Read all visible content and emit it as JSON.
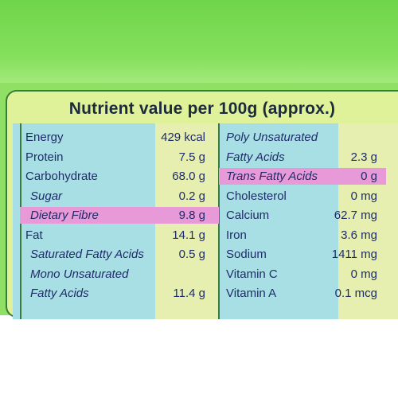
{
  "title": "Nutrient value per 100g (approx.)",
  "colors": {
    "band_green": "#8fe064",
    "panel_yellow": "#dff29a",
    "table_blue": "#a8dfe4",
    "value_column": "#e6efb0",
    "highlight_pink": "#e89ad8",
    "text": "#1f2c6a"
  },
  "left": [
    {
      "name": "Energy",
      "value": "429 kcal"
    },
    {
      "name": "Protein",
      "value": "7.5 g"
    },
    {
      "name": "Carbohydrate",
      "value": "68.0 g"
    },
    {
      "name": "Sugar",
      "value": "0.2 g",
      "italic": true
    },
    {
      "name": "Dietary Fibre",
      "value": "9.8 g",
      "italic": true,
      "highlight": true
    },
    {
      "name": "Fat",
      "value": "14.1 g"
    },
    {
      "name": "Saturated Fatty Acids",
      "value": "0.5 g",
      "italic": true
    },
    {
      "name": "Mono Unsaturated",
      "value": "",
      "italic": true
    },
    {
      "name": "Fatty Acids",
      "value": "11.4 g",
      "italic": true
    }
  ],
  "right": [
    {
      "name": "Poly Unsaturated",
      "value": "",
      "italic": true
    },
    {
      "name": "Fatty Acids",
      "value": "2.3 g",
      "italic": true
    },
    {
      "name": "Trans Fatty Acids",
      "value": "0 g",
      "italic": true,
      "highlight": true
    },
    {
      "name": "Cholesterol",
      "value": "0 mg"
    },
    {
      "name": "Calcium",
      "value": "62.7 mg"
    },
    {
      "name": "Iron",
      "value": "3.6 mg"
    },
    {
      "name": "Sodium",
      "value": "1411 mg"
    },
    {
      "name": "Vitamin C",
      "value": "0 mg"
    },
    {
      "name": "Vitamin A",
      "value": "0.1 mcg"
    }
  ]
}
